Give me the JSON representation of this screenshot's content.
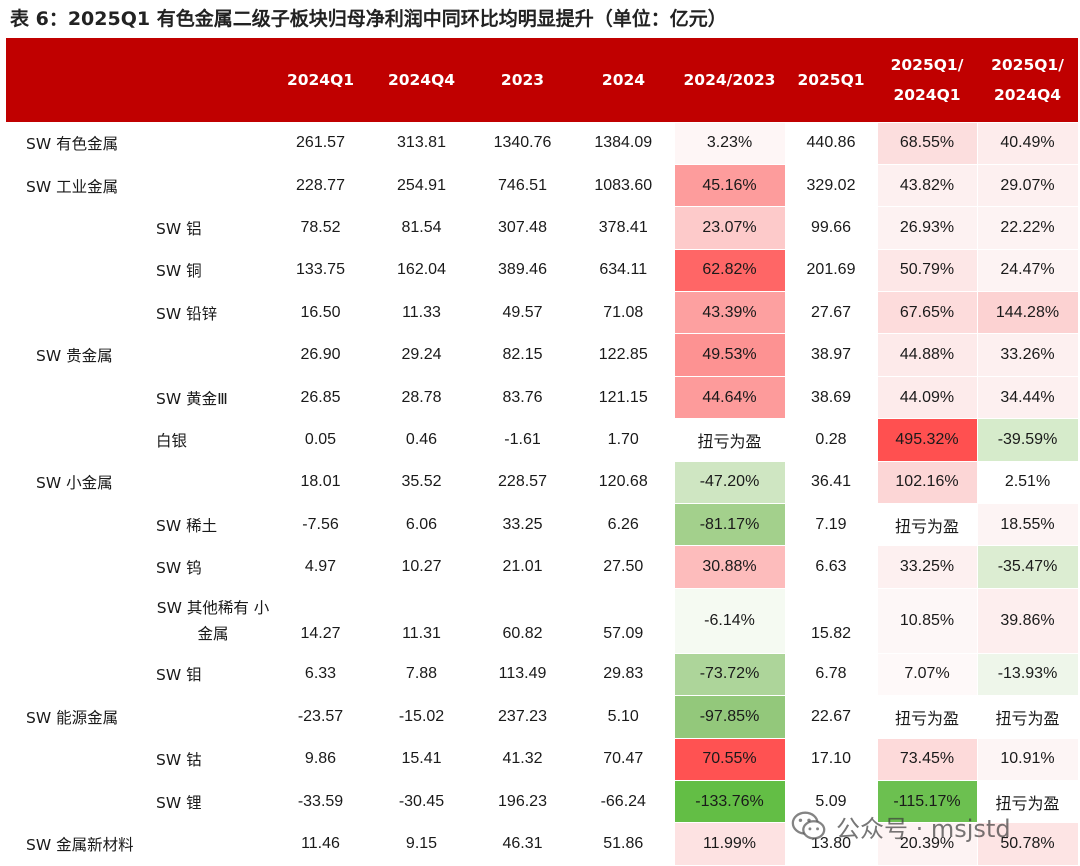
{
  "title": "表 6：2025Q1 有色金属二级子板块归母净利润中同环比均明显提升（单位：亿元）",
  "header": {
    "col_name": "",
    "col_2024q1": "2024Q1",
    "col_2024q4": "2024Q4",
    "col_2023": "2023",
    "col_2024": "2024",
    "col_yoy": "2024/2023",
    "col_2025q1": "2025Q1",
    "col_q1q1_a": "2025Q1/",
    "col_q1q1_b": "2024Q1",
    "col_q1q4_a": "2025Q1/",
    "col_q1q4_b": "2024Q4"
  },
  "colors": {
    "header_bg": "#c00000",
    "heat_red_strong": "#ff5050",
    "heat_green_strong": "#63be45"
  },
  "rows": [
    {
      "name": "SW 有色金属",
      "level": 0,
      "q1_2024": "261.57",
      "q4_2024": "313.81",
      "y2023": "1340.76",
      "y2024": "1384.09",
      "yoy": "3.23%",
      "q1_2025": "440.86",
      "q1q1": "68.55%",
      "q1q4": "40.49%",
      "yoy_bg": "#fef6f6",
      "q1q1_bg": "#fcdede",
      "q1q4_bg": "#fdecec"
    },
    {
      "name": "SW 工业金属",
      "level": 0,
      "q1_2024": "228.77",
      "q4_2024": "254.91",
      "y2023": "746.51",
      "y2024": "1083.60",
      "yoy": "45.16%",
      "q1_2025": "329.02",
      "q1q1": "43.82%",
      "q1q4": "29.07%",
      "yoy_bg": "#fd9c9c",
      "q1q1_bg": "#fdf0f0",
      "q1q4_bg": "#fdf0f0"
    },
    {
      "name": "SW 铝",
      "level": 1,
      "q1_2024": "78.52",
      "q4_2024": "81.54",
      "y2023": "307.48",
      "y2024": "378.41",
      "yoy": "23.07%",
      "q1_2025": "99.66",
      "q1q1": "26.93%",
      "q1q4": "22.22%",
      "yoy_bg": "#fdcaca",
      "q1q1_bg": "#fdf2f2",
      "q1q4_bg": "#fdf3f3"
    },
    {
      "name": "SW 铜",
      "level": 1,
      "q1_2024": "133.75",
      "q4_2024": "162.04",
      "y2023": "389.46",
      "y2024": "634.11",
      "yoy": "62.82%",
      "q1_2025": "201.69",
      "q1q1": "50.79%",
      "q1q4": "24.47%",
      "yoy_bg": "#ff6666",
      "q1q1_bg": "#fde7e7",
      "q1q4_bg": "#fdf3f3"
    },
    {
      "name": "SW 铅锌",
      "level": 1,
      "q1_2024": "16.50",
      "q4_2024": "11.33",
      "y2023": "49.57",
      "y2024": "71.08",
      "yoy": "43.39%",
      "q1_2025": "27.67",
      "q1q1": "67.65%",
      "q1q4": "144.28%",
      "yoy_bg": "#fda0a0",
      "q1q1_bg": "#fddcdc",
      "q1q4_bg": "#fcd2d2"
    },
    {
      "name": "SW 贵金属",
      "level": 0.5,
      "q1_2024": "26.90",
      "q4_2024": "29.24",
      "y2023": "82.15",
      "y2024": "122.85",
      "yoy": "49.53%",
      "q1_2025": "38.97",
      "q1q1": "44.88%",
      "q1q4": "33.26%",
      "yoy_bg": "#fd9292",
      "q1q1_bg": "#fdeaea",
      "q1q4_bg": "#fdf0f0"
    },
    {
      "name": "SW 黄金Ⅲ",
      "level": 1,
      "q1_2024": "26.85",
      "q4_2024": "28.78",
      "y2023": "83.76",
      "y2024": "121.15",
      "yoy": "44.64%",
      "q1_2025": "38.69",
      "q1q1": "44.09%",
      "q1q4": "34.44%",
      "yoy_bg": "#fd9b9b",
      "q1q1_bg": "#fdebeb",
      "q1q4_bg": "#fdf0f0"
    },
    {
      "name": "白银",
      "level": 1,
      "q1_2024": "0.05",
      "q4_2024": "0.46",
      "y2023": "-1.61",
      "y2024": "1.70",
      "yoy": "扭亏为盈",
      "q1_2025": "0.28",
      "q1q1": "495.32%",
      "q1q4": "-39.59%",
      "yoy_bg": "#ffffff",
      "q1q1_bg": "#ff5050",
      "q1q4_bg": "#d6ebcb"
    },
    {
      "name": "SW 小金属",
      "level": 0.5,
      "q1_2024": "18.01",
      "q4_2024": "35.52",
      "y2023": "228.57",
      "y2024": "120.68",
      "yoy": "-47.20%",
      "q1_2025": "36.41",
      "q1q1": "102.16%",
      "q1q4": "2.51%",
      "yoy_bg": "#cfe6c2",
      "q1q1_bg": "#fcd6d6",
      "q1q4_bg": "#ffffff"
    },
    {
      "name": "SW 稀土",
      "level": 1,
      "q1_2024": "-7.56",
      "q4_2024": "6.06",
      "y2023": "33.25",
      "y2024": "6.26",
      "yoy": "-81.17%",
      "q1_2025": "7.19",
      "q1q1": "扭亏为盈",
      "q1q4": "18.55%",
      "yoy_bg": "#a3d08c",
      "q1q1_bg": "#ffffff",
      "q1q4_bg": "#fdf4f4"
    },
    {
      "name": "SW 钨",
      "level": 1,
      "q1_2024": "4.97",
      "q4_2024": "10.27",
      "y2023": "21.01",
      "y2024": "27.50",
      "yoy": "30.88%",
      "q1_2025": "6.63",
      "q1q1": "33.25%",
      "q1q4": "-35.47%",
      "yoy_bg": "#fdbcbc",
      "q1q1_bg": "#fdf0f0",
      "q1q4_bg": "#dcedd2"
    },
    {
      "name": "SW 其他稀有\n小金属",
      "level": 1,
      "q1_2024": "14.27",
      "q4_2024": "11.31",
      "y2023": "60.82",
      "y2024": "57.09",
      "yoy": "-6.14%",
      "q1_2025": "15.82",
      "q1q1": "10.85%",
      "q1q4": "39.86%",
      "yoy_bg": "#f5faf2",
      "q1q1_bg": "#fdf7f7",
      "q1q4_bg": "#fdeeee"
    },
    {
      "name": "SW 钼",
      "level": 1,
      "q1_2024": "6.33",
      "q4_2024": "7.88",
      "y2023": "113.49",
      "y2024": "29.83",
      "yoy": "-73.72%",
      "q1_2025": "6.78",
      "q1q1": "7.07%",
      "q1q4": "-13.93%",
      "yoy_bg": "#add59a",
      "q1q1_bg": "#fef9f9",
      "q1q4_bg": "#eef6ea"
    },
    {
      "name": "SW 能源金属",
      "level": 0,
      "q1_2024": "-23.57",
      "q4_2024": "-15.02",
      "y2023": "237.23",
      "y2024": "5.10",
      "yoy": "-97.85%",
      "q1_2025": "22.67",
      "q1q1": "扭亏为盈",
      "q1q4": "扭亏为盈",
      "yoy_bg": "#93c87b",
      "q1q1_bg": "#ffffff",
      "q1q4_bg": "#ffffff"
    },
    {
      "name": "SW 钴",
      "level": 1,
      "q1_2024": "9.86",
      "q4_2024": "15.41",
      "y2023": "41.32",
      "y2024": "70.47",
      "yoy": "70.55%",
      "q1_2025": "17.10",
      "q1q1": "73.45%",
      "q1q4": "10.91%",
      "yoy_bg": "#ff5252",
      "q1q1_bg": "#fddada",
      "q1q4_bg": "#fdf5f5"
    },
    {
      "name": "SW 锂",
      "level": 1,
      "q1_2024": "-33.59",
      "q4_2024": "-30.45",
      "y2023": "196.23",
      "y2024": "-66.24",
      "yoy": "-133.76%",
      "q1_2025": "5.09",
      "q1q1": "-115.17%",
      "q1q4": "扭亏为盈",
      "yoy_bg": "#63be45",
      "q1q1_bg": "#6cc050",
      "q1q4_bg": "#ffffff"
    },
    {
      "name": "SW 金属新材料",
      "level": 0,
      "q1_2024": "11.46",
      "q4_2024": "9.15",
      "y2023": "46.31",
      "y2024": "51.86",
      "yoy": "11.99%",
      "q1_2025": "13.80",
      "q1q1": "20.39%",
      "q1q4": "50.78%",
      "yoy_bg": "#fde2e2",
      "q1q1_bg": "#fdf3f3",
      "q1q4_bg": "#fde4e4"
    }
  ],
  "watermark": {
    "icon": "wechat-icon",
    "text": "公众号 · msjstd"
  }
}
